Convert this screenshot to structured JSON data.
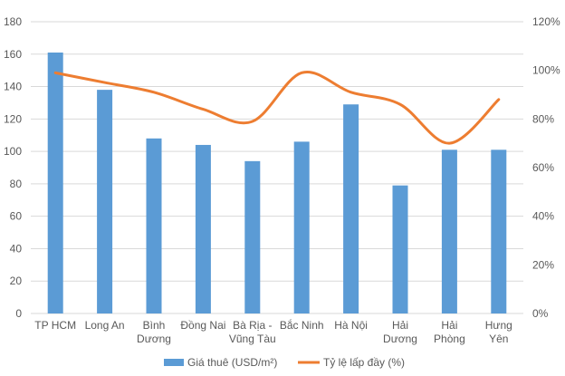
{
  "chart_data": {
    "type": "bar+line",
    "categories": [
      [
        "TP HCM"
      ],
      [
        "Long An"
      ],
      [
        "Bình",
        "Dương"
      ],
      [
        "Đồng Nai"
      ],
      [
        "Bà Rịa -",
        "Vũng Tàu"
      ],
      [
        "Bắc Ninh"
      ],
      [
        "Hà Nội"
      ],
      [
        "Hải",
        "Dương"
      ],
      [
        "Hải",
        "Phòng"
      ],
      [
        "Hưng",
        "Yên"
      ]
    ],
    "series": [
      {
        "name": "Giá thuê (USD/m²)",
        "type": "bar",
        "axis": "left",
        "color": "#5B9BD5",
        "values": [
          161,
          138,
          108,
          104,
          94,
          106,
          129,
          79,
          101,
          101
        ]
      },
      {
        "name": "Tỷ lệ lấp đầy (%)",
        "type": "line",
        "smooth": true,
        "axis": "right",
        "color": "#ED7D31",
        "values": [
          99,
          95,
          91,
          84,
          79,
          99,
          91,
          86,
          70,
          88
        ]
      }
    ],
    "y_left": {
      "min": 0,
      "max": 180,
      "step": 20,
      "ticks": [
        "0",
        "20",
        "40",
        "60",
        "80",
        "100",
        "120",
        "140",
        "160",
        "180"
      ]
    },
    "y_right": {
      "min": 0,
      "max": 120,
      "step": 20,
      "ticks": [
        "0%",
        "20%",
        "40%",
        "60%",
        "80%",
        "100%",
        "120%"
      ]
    },
    "grid": true,
    "legend": "bottom"
  }
}
